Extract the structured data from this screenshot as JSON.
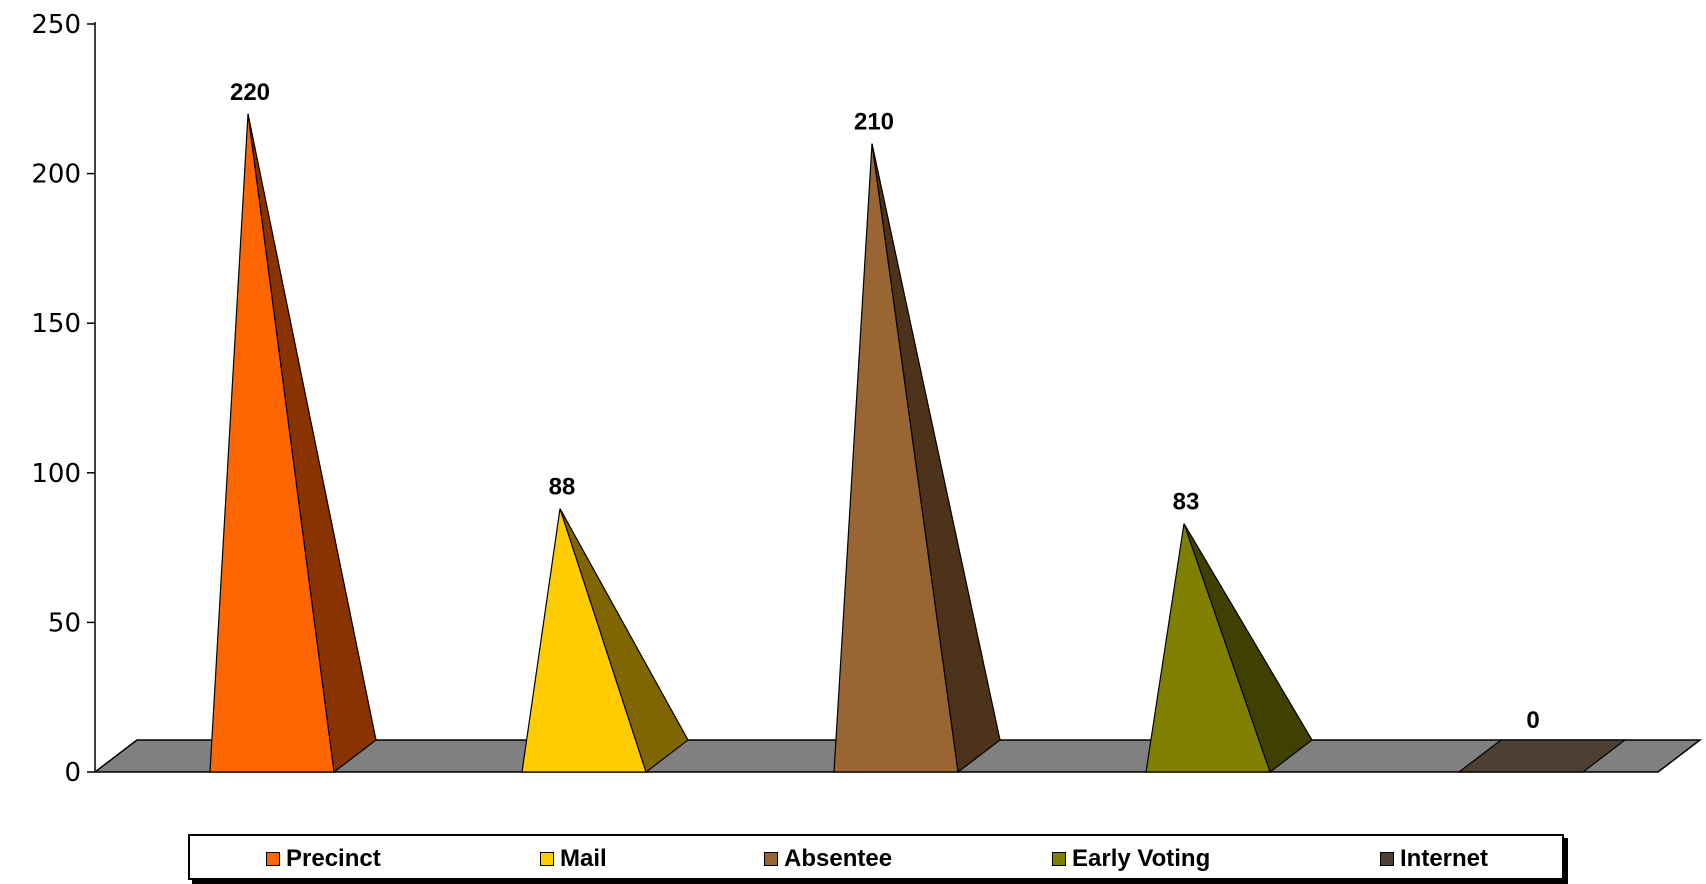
{
  "chart_data": {
    "type": "bar",
    "style": "3d-cone",
    "categories": [
      "Precinct",
      "Mail",
      "Absentee",
      "Early Voting",
      "Internet"
    ],
    "values": [
      220,
      88,
      210,
      83,
      0
    ],
    "value_labels": [
      "220",
      "88",
      "210",
      "83",
      "0"
    ],
    "colors": [
      "#FF6600",
      "#FFCC00",
      "#996633",
      "#808000",
      "#4D4033"
    ],
    "side_colors": [
      "#883300",
      "#806600",
      "#4D331A",
      "#404000",
      "#2A221B"
    ],
    "floor_color": "#808080",
    "ylim": [
      0,
      250
    ],
    "yticks": [
      0,
      50,
      100,
      150,
      200,
      250
    ],
    "ytick_labels": [
      "0",
      "50",
      "100",
      "150",
      "200",
      "250"
    ],
    "title": "",
    "xlabel": "",
    "ylabel": "",
    "legend": {
      "position": "bottom",
      "entries": [
        "Precinct",
        "Mail",
        "Absentee",
        "Early Voting",
        "Internet"
      ]
    }
  }
}
